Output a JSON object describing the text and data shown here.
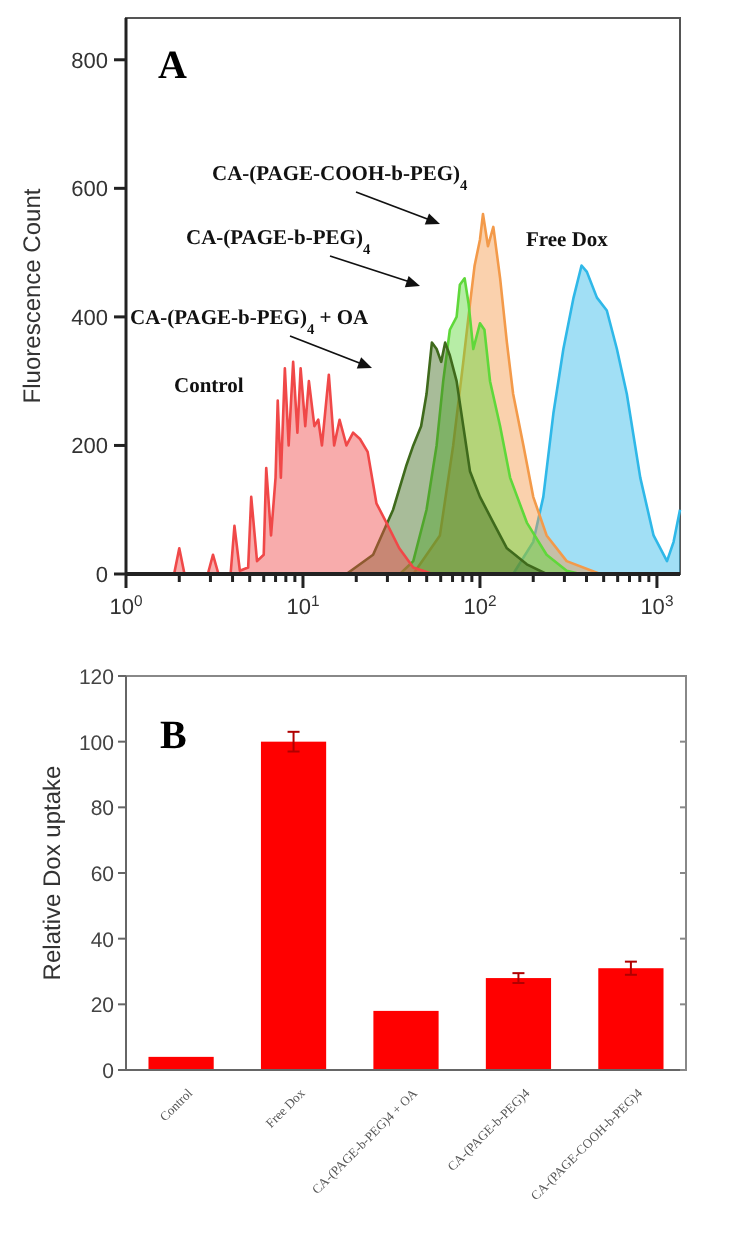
{
  "chart_data": [
    {
      "type": "area",
      "title": "A",
      "ylabel": "Fluorescence Count",
      "log": "x",
      "grid": false,
      "xlim": [
        1,
        1350
      ],
      "ylim": [
        0,
        865
      ],
      "xticks": [
        {
          "value": 1,
          "label": "10$^{0}$"
        },
        {
          "value": 2,
          "label": null
        },
        {
          "value": 3,
          "label": null
        },
        {
          "value": 4,
          "label": null
        },
        {
          "value": 5,
          "label": null
        },
        {
          "value": 6,
          "label": null
        },
        {
          "value": 7,
          "label": null
        },
        {
          "value": 8,
          "label": null
        },
        {
          "value": 9,
          "label": null
        },
        {
          "value": 10,
          "label": "10$^{1}$"
        },
        {
          "value": 20,
          "label": null
        },
        {
          "value": 30,
          "label": null
        },
        {
          "value": 40,
          "label": null
        },
        {
          "value": 50,
          "label": null
        },
        {
          "value": 60,
          "label": null
        },
        {
          "value": 70,
          "label": null
        },
        {
          "value": 80,
          "label": null
        },
        {
          "value": 90,
          "label": null
        },
        {
          "value": 100,
          "label": "10$^{2}$"
        },
        {
          "value": 200,
          "label": null
        },
        {
          "value": 300,
          "label": null
        },
        {
          "value": 400,
          "label": null
        },
        {
          "value": 500,
          "label": null
        },
        {
          "value": 600,
          "label": null
        },
        {
          "value": 700,
          "label": null
        },
        {
          "value": 800,
          "label": null
        },
        {
          "value": 900,
          "label": null
        },
        {
          "value": 1000,
          "label": "10$^{3}$"
        }
      ],
      "yticks": [
        0,
        200,
        400,
        600,
        800
      ],
      "series": [
        {
          "name": "Control",
          "color": "#f04848",
          "x": [
            1,
            1.87,
            2.0,
            2.14,
            2.9,
            3.1,
            3.33,
            3.9,
            4.1,
            4.4,
            4.9,
            5.1,
            5.5,
            6.0,
            6.2,
            6.6,
            7.0,
            7.2,
            7.5,
            7.9,
            8.3,
            8.8,
            9.3,
            9.7,
            10.3,
            10.8,
            11.6,
            12.2,
            12.8,
            14.0,
            15.0,
            16.1,
            17.6,
            19.2,
            21,
            23.2,
            26,
            29.6,
            35,
            42,
            54,
            1350
          ],
          "values": [
            0,
            0,
            40,
            0,
            0,
            30,
            0,
            0,
            75,
            5,
            10,
            120,
            20,
            30,
            165,
            60,
            150,
            270,
            150,
            320,
            200,
            330,
            220,
            320,
            230,
            300,
            230,
            240,
            200,
            310,
            200,
            240,
            200,
            220,
            210,
            190,
            110,
            80,
            40,
            10,
            0,
            0
          ]
        },
        {
          "name": "CA-(PAGE-b-PEG)$_{4}$ + OA",
          "color": "#3f6a1c",
          "x": [
            17.6,
            24.9,
            32.3,
            38.5,
            42,
            46.5,
            49.9,
            53.5,
            56.9,
            60.4,
            63.6,
            67.6,
            73.8,
            80.5,
            87.8,
            100,
            119,
            142,
            184,
            238
          ],
          "values": [
            0,
            30,
            100,
            170,
            200,
            230,
            280,
            360,
            350,
            330,
            360,
            340,
            300,
            230,
            160,
            120,
            80,
            40,
            15,
            0
          ]
        },
        {
          "name": "CA-(PAGE-b-PEG)$_{4}$",
          "color": "#5fd83a",
          "x": [
            35.3,
            42,
            49.9,
            56.9,
            62,
            67.6,
            73.8,
            77,
            81.9,
            86.3,
            91.7,
            100,
            106,
            114,
            130,
            148,
            184,
            238,
            309,
            368
          ],
          "values": [
            0,
            20,
            100,
            200,
            300,
            380,
            400,
            450,
            460,
            420,
            350,
            390,
            380,
            300,
            230,
            150,
            80,
            30,
            5,
            0
          ]
        },
        {
          "name": "CA-(PAGE-COOH-b-PEG)$_{4}$",
          "color": "#f39a4a",
          "x": [
            42,
            59.4,
            70.6,
            80.5,
            87.8,
            93.3,
            100,
            104,
            111,
            119,
            130,
            142,
            154,
            176,
            200,
            238,
            309,
            478
          ],
          "values": [
            0,
            60,
            200,
            330,
            420,
            480,
            520,
            560,
            510,
            540,
            460,
            360,
            280,
            200,
            120,
            60,
            20,
            0
          ]
        },
        {
          "name": "Free Dox",
          "color": "#2fb8e8",
          "x": [
            154,
            200,
            228,
            260,
            296,
            338,
            375,
            402,
            458,
            521,
            594,
            676,
            805,
            957,
            1140,
            1242,
            1350
          ],
          "values": [
            0,
            50,
            120,
            250,
            350,
            430,
            480,
            470,
            430,
            410,
            350,
            280,
            150,
            60,
            20,
            50,
            100
          ]
        }
      ]
    },
    {
      "type": "bar",
      "title": "B",
      "ylabel": "Relative Dox uptake",
      "categories": [
        "Control",
        "Free Dox",
        "CA-(PAGE-b-PEG)4 + OA",
        "CA-(PAGE-b-PEG)4",
        "CA-(PAGE-COOH-b-PEG)4"
      ],
      "values": [
        4,
        100,
        18,
        28,
        31
      ],
      "errors": [
        null,
        3,
        null,
        1.5,
        2
      ],
      "color": "#ff0000",
      "ylim": [
        0,
        120
      ],
      "yticks": [
        0,
        20,
        40,
        60,
        80,
        100,
        120
      ],
      "grid": false
    }
  ]
}
